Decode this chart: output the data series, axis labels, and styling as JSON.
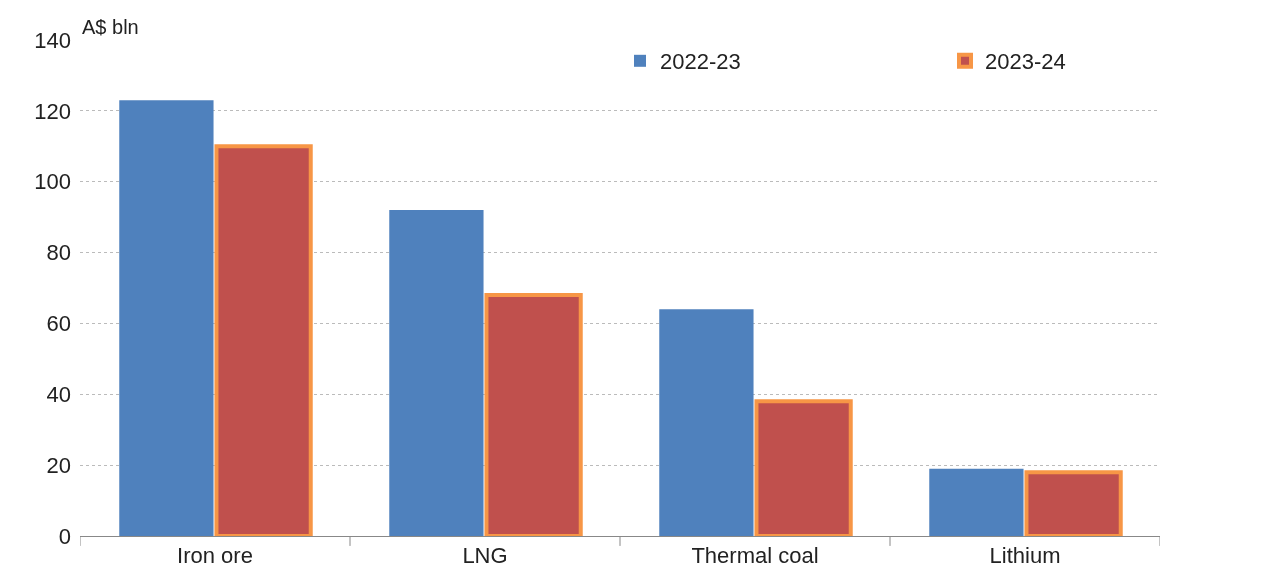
{
  "chart_data": {
    "type": "bar",
    "ylabel": "A$ bln",
    "categories": [
      "Iron ore",
      "LNG",
      "Thermal coal",
      "Lithium"
    ],
    "series": [
      {
        "name": "2022-23",
        "color": "#4f81bd",
        "values": [
          123,
          92,
          64,
          19
        ]
      },
      {
        "name": "2023-24",
        "color": "#c0504d",
        "values": [
          110,
          68,
          38,
          18
        ]
      }
    ],
    "ylim": [
      0,
      140
    ],
    "yticks": [
      0,
      20,
      40,
      60,
      80,
      100,
      120,
      140
    ],
    "grid": "y",
    "legend": "top"
  }
}
